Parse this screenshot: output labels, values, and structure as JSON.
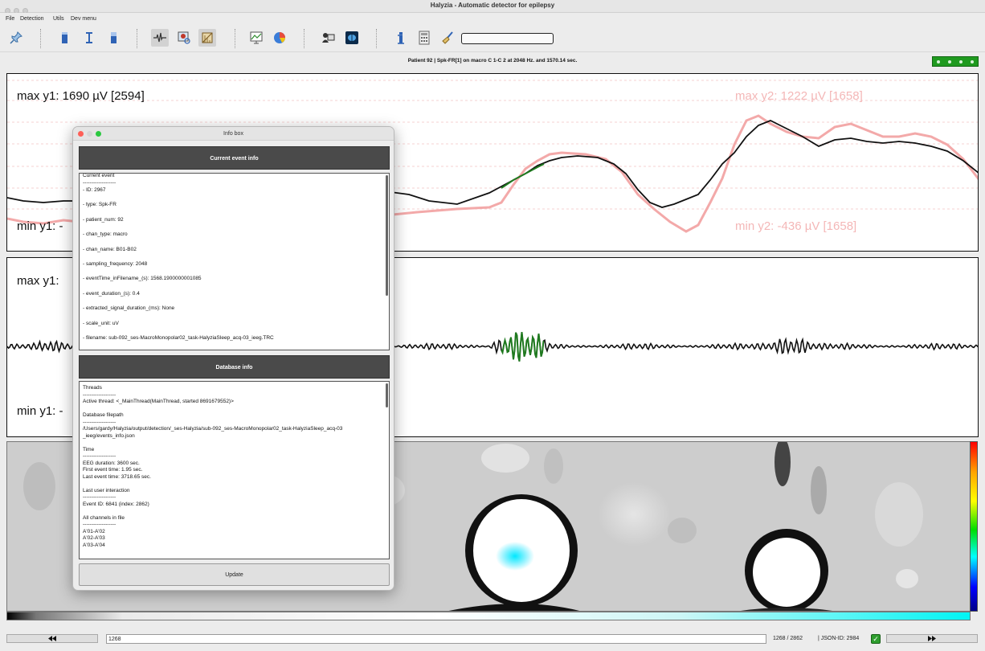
{
  "window": {
    "title": "Halyzia - Automatic detector for epilepsy"
  },
  "menu": [
    "File",
    "Detection",
    "Utils",
    "Dev menu"
  ],
  "toolbar": {
    "icons": [
      "pin-icon",
      "bar-blue-icon",
      "text-cursor-icon",
      "bar-filled-icon",
      "waveform-icon",
      "image-zoom-icon",
      "ruler-icon",
      "line-chart-icon",
      "pie-chart-icon",
      "user-computer-icon",
      "brain-icon",
      "info-icon",
      "calculator-icon",
      "broom-icon"
    ],
    "progress": ""
  },
  "status_line": "Patient 92   |   Spk-FR[1] on macro C 1-C 2 at 2048 Hz. and 1570.14 sec.",
  "panel1": {
    "max_y1": "max y1: 1690 µV [2594]",
    "min_y1": "min y1: -",
    "max_y2": "max y2: 1222 µV [1658]",
    "min_y2": "min y2: -436 µV [1658]"
  },
  "panel2": {
    "max_y1": "max y1: ",
    "min_y1": "min y1: -"
  },
  "info_box": {
    "title": "Info box",
    "current_event_header": "Current event info",
    "current_event_lines": [
      "Current event",
      "-------------------",
      "- ID: 2967",
      "- type: Spk-FR",
      "- patient_num: 92",
      "- chan_type: macro",
      "- chan_name: B01-B02",
      "- sampling_frequency: 2048",
      "- eventTime_inFilename_(s): 1568.1900000001085",
      "- event_duration_(s): 0.4",
      "- extracted_signal_duration_(ms): None",
      "- scale_unit: uV",
      "- filename: sub-092_ses-MacroMonopolar02_task-HalyziaSleep_acq-03_ieeg.TRC"
    ],
    "database_header": "Database info",
    "threads_title": "Threads",
    "dashes": "-------------------",
    "active_thread": "Active thread: <_MainThread(MainThread, started 8691679552)>",
    "db_filepath_title": "Database filepath",
    "db_filepath": "/Users/gardy/Halyzia/output/detection/_ses-Halyzia/sub-092_ses-MacroMonopolar02_task-HalyziaSleep_acq-03_ieeg/events_info.json",
    "time_title": "Time",
    "eeg_duration": "EEG duration: 3600 sec.",
    "first_event": "First event time: 1.95 sec.",
    "last_event": "Last event time: 3718.65 sec.",
    "last_interaction_title": "Last user interaction",
    "last_interaction": "Event ID: 6841 (index: 2862)",
    "channels_title": "All channels in file",
    "channels": [
      "A'01-A'02",
      "A'02-A'03",
      "A'03-A'04"
    ],
    "update_label": "Update"
  },
  "bottom": {
    "prev_icon": "double-left-arrow-icon",
    "next_icon": "double-right-arrow-icon",
    "event_index": "1268",
    "event_count": "1268 / 2862",
    "json_id": "|   JSON-ID: 2984",
    "ok_icon": "checkmark-icon"
  },
  "colors": {
    "signal_black": "#111111",
    "signal_pink": "#f3a9a9",
    "highlight_green": "#1f7a1f",
    "indicator_green": "#1f9a1f"
  }
}
